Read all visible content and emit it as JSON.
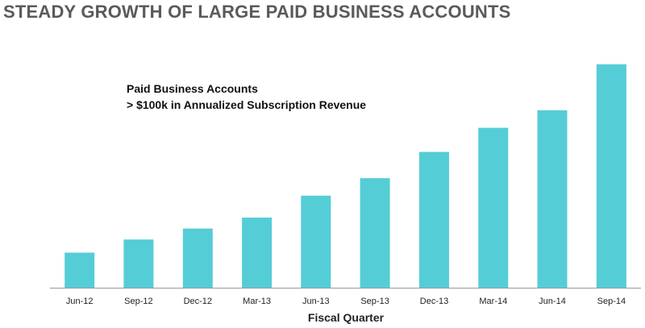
{
  "chart_data": {
    "type": "bar",
    "title": "STEADY GROWTH OF LARGE PAID BUSINESS ACCOUNTS",
    "annotation": {
      "line1": "Paid Business Accounts",
      "line2": "> $100k in Annualized Subscription Revenue"
    },
    "xlabel": "Fiscal Quarter",
    "ylabel": "",
    "categories": [
      "Jun-12",
      "Sep-12",
      "Dec-12",
      "Mar-13",
      "Jun-13",
      "Sep-13",
      "Dec-13",
      "Mar-14",
      "Jun-14",
      "Sep-14"
    ],
    "values": [
      16,
      22,
      27,
      32,
      42,
      50,
      62,
      73,
      81,
      102
    ],
    "ylim": [
      0,
      110
    ],
    "grid": false,
    "legend": "none",
    "bar_color": "#55cdd6",
    "axis_color": "#999999"
  }
}
